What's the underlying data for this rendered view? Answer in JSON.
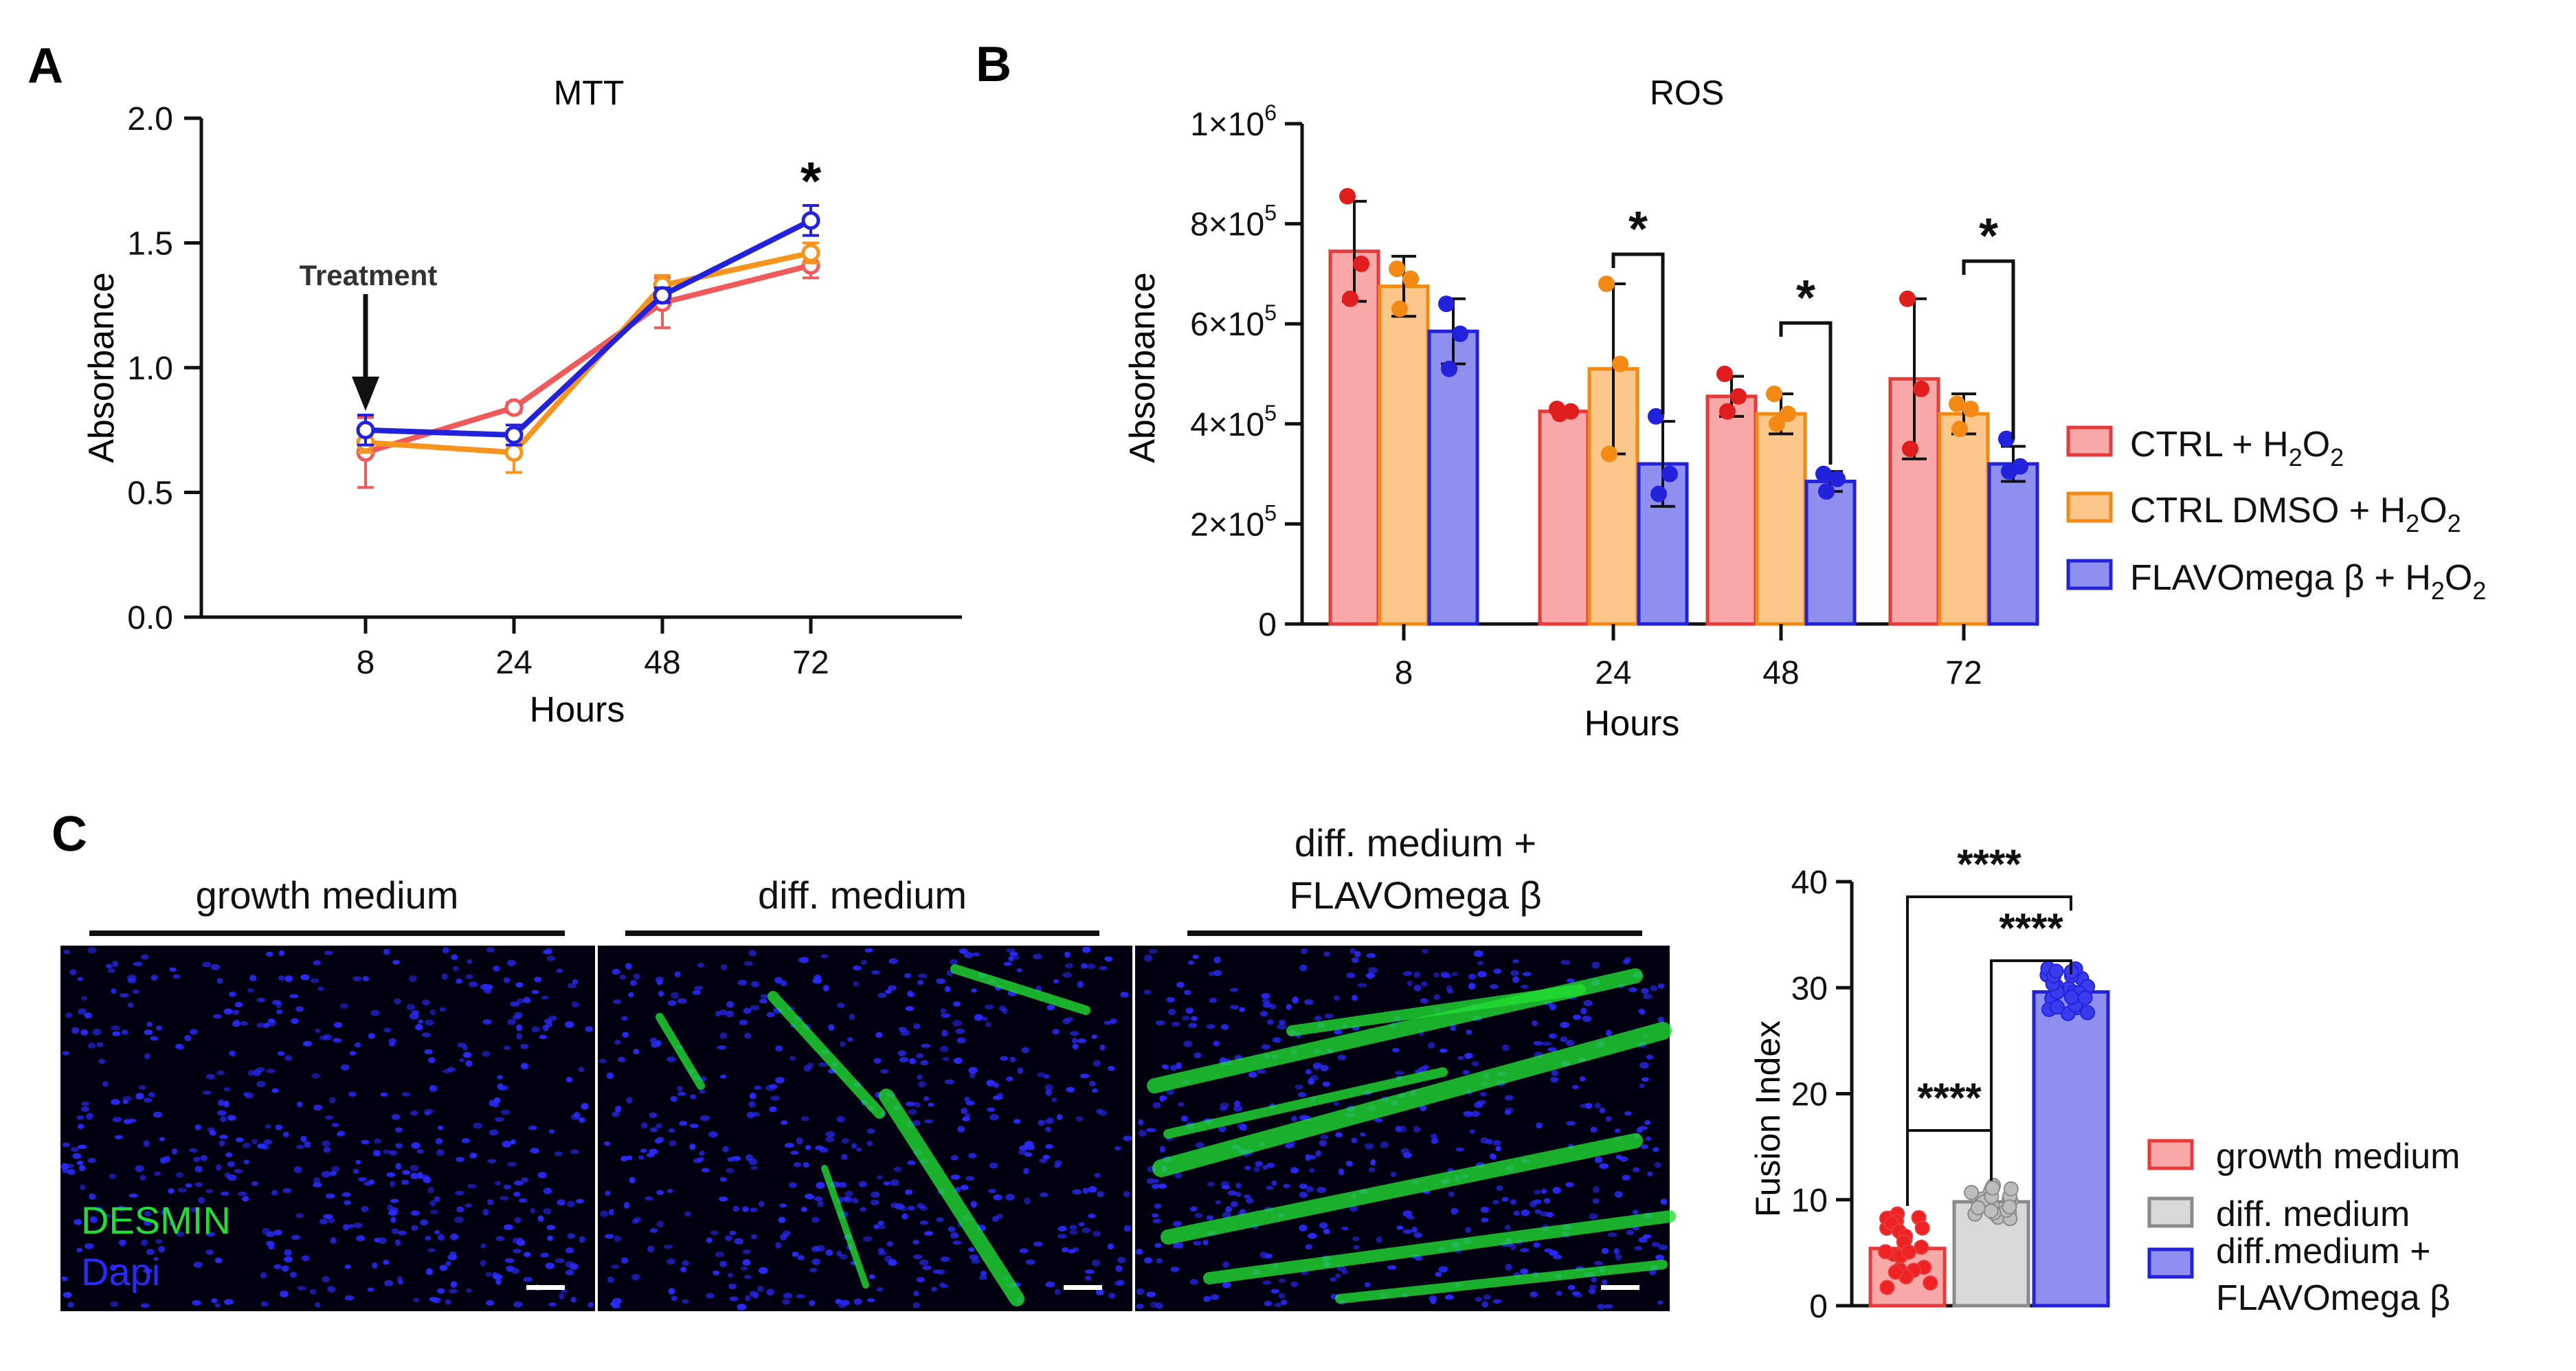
{
  "panels": {
    "a": "A",
    "b": "B",
    "c": "C"
  },
  "chart_data": [
    {
      "id": "mtt",
      "type": "line",
      "title": "MTT",
      "xlabel": "Hours",
      "ylabel": "Absorbance",
      "categories": [
        "8",
        "24",
        "48",
        "72"
      ],
      "ylim": [
        0,
        2.0
      ],
      "yticks": [
        "0.0",
        "0.5",
        "1.0",
        "1.5",
        "2.0"
      ],
      "annotation_arrow": "Treatment",
      "significance": "*",
      "series": [
        {
          "name": "CTRL + H2O2",
          "color": "#f05a5a",
          "values": [
            0.66,
            0.84,
            1.26,
            1.41
          ],
          "errors": [
            0.14,
            0.02,
            0.1,
            0.05
          ]
        },
        {
          "name": "CTRL DMSO + H2O2",
          "color": "#f7941d",
          "values": [
            0.7,
            0.66,
            1.33,
            1.46
          ],
          "errors": [
            0.04,
            0.08,
            0.04,
            0.04
          ]
        },
        {
          "name": "FLAVOmega β + H2O2",
          "color": "#2222dd",
          "values": [
            0.75,
            0.73,
            1.29,
            1.59
          ],
          "errors": [
            0.06,
            0.04,
            0.03,
            0.06
          ]
        }
      ]
    },
    {
      "id": "ros",
      "type": "bar",
      "title": "ROS",
      "xlabel": "Hours",
      "ylabel": "Absorbance",
      "categories": [
        "8",
        "24",
        "48",
        "72"
      ],
      "ylim": [
        0,
        1000000
      ],
      "yticks": [
        {
          "base": "0",
          "exp": ""
        },
        {
          "base": "2×10",
          "exp": "5"
        },
        {
          "base": "4×10",
          "exp": "5"
        },
        {
          "base": "6×10",
          "exp": "5"
        },
        {
          "base": "8×10",
          "exp": "5"
        },
        {
          "base": "1×10",
          "exp": "6"
        }
      ],
      "legend": [
        {
          "pre": "CTRL + H",
          "sub": "2",
          "mid": "O",
          "sub2": "2"
        },
        {
          "pre": "CTRL DMSO + H",
          "sub": "2",
          "mid": "O",
          "sub2": "2"
        },
        {
          "pre": "FLAVOmega β + H",
          "sub": "2",
          "mid": "O",
          "sub2": "2"
        }
      ],
      "series": [
        {
          "name": "CTRL + H2O2",
          "fill": "#f9a8a8",
          "stroke": "#e83a3a",
          "dot": "#e01e1e",
          "values": [
            745000,
            425000,
            455000,
            490000
          ],
          "errors": [
            100000,
            5000,
            40000,
            160000
          ],
          "points": [
            [
              855000,
              720000,
              650000
            ],
            [
              430000,
              425000,
              420000
            ],
            [
              500000,
              455000,
              425000
            ],
            [
              650000,
              470000,
              350000
            ]
          ]
        },
        {
          "name": "CTRL DMSO + H2O2",
          "fill": "#fbc78a",
          "stroke": "#f48a14",
          "dot": "#f48a14",
          "values": [
            675000,
            510000,
            420000,
            420000
          ],
          "errors": [
            60000,
            170000,
            40000,
            40000
          ],
          "points": [
            [
              710000,
              690000,
              630000
            ],
            [
              680000,
              520000,
              340000
            ],
            [
              460000,
              420000,
              400000
            ],
            [
              440000,
              430000,
              390000
            ]
          ]
        },
        {
          "name": "FLAVOmega β + H2O2",
          "fill": "#8f8ff0",
          "stroke": "#2222dd",
          "dot": "#2222dd",
          "values": [
            585000,
            320000,
            285000,
            320000
          ],
          "errors": [
            65000,
            85000,
            20000,
            35000
          ],
          "points": [
            [
              640000,
              580000,
              510000
            ],
            [
              415000,
              300000,
              260000
            ],
            [
              300000,
              290000,
              265000
            ],
            [
              370000,
              315000,
              305000
            ]
          ]
        }
      ],
      "significance": [
        "*",
        "*",
        "*"
      ]
    },
    {
      "id": "fusion",
      "type": "bar",
      "xlabel": "",
      "ylabel": "Fusion Index",
      "categories": [
        "growth medium",
        "diff. medium",
        "diff.medium + FLAVOmega β"
      ],
      "ylim": [
        0,
        40
      ],
      "yticks": [
        "0",
        "10",
        "20",
        "30",
        "40"
      ],
      "legend": [
        {
          "line1": "growth medium",
          "line2": ""
        },
        {
          "line1": "diff. medium",
          "line2": ""
        },
        {
          "line1": "diff.medium +",
          "line2": "FLAVOmega β"
        }
      ],
      "series": [
        {
          "name": "growth medium",
          "fill": "#f9a8a8",
          "stroke": "#e83a3a",
          "dot": "#ee2222",
          "mean": 5.4,
          "spread": 4.6
        },
        {
          "name": "diff. medium",
          "fill": "#d9d9d9",
          "stroke": "#8a8a8a",
          "dot": "#bdbdbd",
          "mean": 9.8,
          "spread": 2.0
        },
        {
          "name": "diff.medium + FLAVOmega β",
          "fill": "#8f8ff0",
          "stroke": "#2222dd",
          "dot": "#3b3bee",
          "mean": 29.6,
          "spread": 3.0
        }
      ],
      "significance": [
        "****",
        "****",
        "****"
      ]
    }
  ],
  "micrographs": {
    "headers": [
      {
        "line1": "growth medium",
        "line2": ""
      },
      {
        "line1": "diff. medium",
        "line2": ""
      },
      {
        "line1": "diff. medium +",
        "line2": "FLAVOmega β"
      }
    ],
    "stain_desmin": "DESMIN",
    "stain_dapi": "Dapi",
    "colors": {
      "desmin": "#22dd33",
      "dapi": "#2a2aff",
      "background": "#000010"
    }
  }
}
